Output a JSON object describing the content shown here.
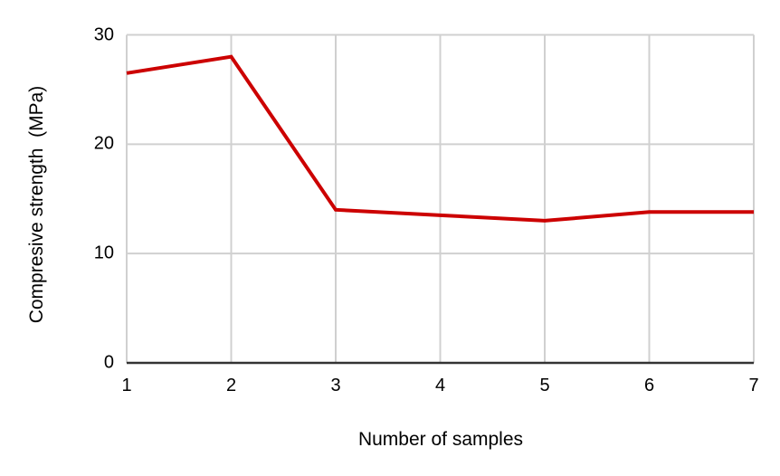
{
  "chart_data": {
    "type": "line",
    "title": "",
    "xlabel": "Number of samples",
    "ylabel": "Compresive strength  (MPa)",
    "x": [
      1,
      2,
      3,
      4,
      5,
      6,
      7
    ],
    "series": [
      {
        "values": [
          26.5,
          28,
          14,
          13.5,
          13,
          13.8,
          13.8
        ],
        "color": "#cc0000"
      }
    ],
    "xticks": [
      1,
      2,
      3,
      4,
      5,
      6,
      7
    ],
    "yticks": [
      30,
      20,
      10,
      0
    ],
    "xlim": [
      1,
      7
    ],
    "ylim": [
      0,
      30
    ],
    "grid": true,
    "legend": "none",
    "line_width": 4,
    "colors": {
      "line": "#cc0000",
      "gridline": "#d0d0d0",
      "axis_line": "#333333",
      "text": "#000000",
      "background": "#ffffff"
    }
  }
}
